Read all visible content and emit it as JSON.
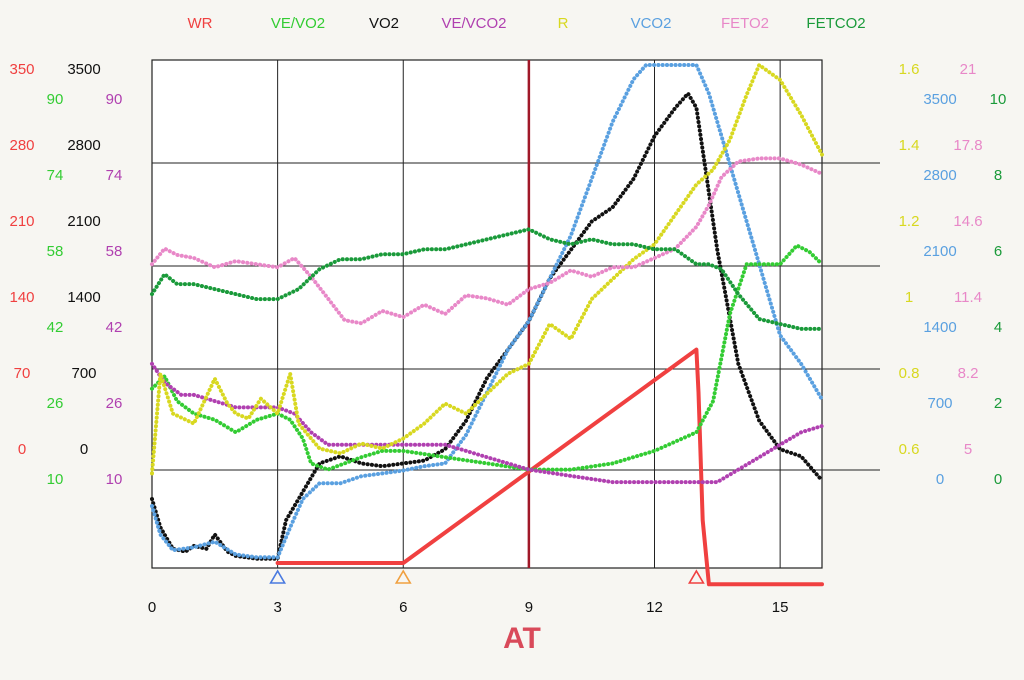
{
  "chart_data": {
    "type": "line",
    "title": "",
    "xlabel": "",
    "annotation": "AT",
    "at_line_x": 9,
    "xlim": [
      0,
      16
    ],
    "x_ticks": [
      "0",
      "3",
      "6",
      "9",
      "12",
      "15"
    ],
    "grid": true,
    "legend_placement": "top",
    "legend": [
      {
        "name": "WR",
        "color": "#f04040"
      },
      {
        "name": "VE/VO2",
        "color": "#33cc33"
      },
      {
        "name": "VO2",
        "color": "#111111"
      },
      {
        "name": "VE/VCO2",
        "color": "#b040b0"
      },
      {
        "name": "R",
        "color": "#d8d820"
      },
      {
        "name": "VCO2",
        "color": "#5aa0e0"
      },
      {
        "name": "FETO2",
        "color": "#e888c8"
      },
      {
        "name": "FETCO2",
        "color": "#1a9a3a"
      }
    ],
    "left_axes": [
      {
        "name": "WR",
        "color": "#f04040",
        "ticks": [
          "350",
          "280",
          "210",
          "140",
          "70",
          "0"
        ],
        "ylim": [
          0,
          350
        ]
      },
      {
        "name": "VO2",
        "color": "#111111",
        "ticks": [
          "3500",
          "2800",
          "2100",
          "1400",
          "700",
          "0"
        ],
        "ylim": [
          0,
          3500
        ]
      },
      {
        "name": "VE/VO2",
        "color": "#33cc33",
        "ticks": [
          "90",
          "74",
          "58",
          "42",
          "26",
          "10"
        ],
        "ylim": [
          10,
          90
        ]
      },
      {
        "name": "VE/VCO2",
        "color": "#b040b0",
        "ticks": [
          "90",
          "74",
          "58",
          "42",
          "26",
          "10"
        ],
        "ylim": [
          10,
          90
        ]
      }
    ],
    "right_axes": [
      {
        "name": "R",
        "color": "#d8d820",
        "ticks": [
          "1.6",
          "1.4",
          "1.2",
          "1",
          "0.8",
          "0.6"
        ],
        "ylim": [
          0.6,
          1.6
        ]
      },
      {
        "name": "FETO2",
        "color": "#e888c8",
        "ticks": [
          "21",
          "17.8",
          "14.6",
          "11.4",
          "8.2",
          "5"
        ],
        "ylim": [
          5,
          21
        ]
      },
      {
        "name": "VCO2",
        "color": "#5aa0e0",
        "ticks": [
          "3500",
          "2800",
          "2100",
          "1400",
          "700",
          "0"
        ],
        "ylim": [
          0,
          3500
        ]
      },
      {
        "name": "FETCO2",
        "color": "#1a9a3a",
        "ticks": [
          "10",
          "8",
          "6",
          "4",
          "2",
          "0"
        ],
        "ylim": [
          0,
          10
        ]
      }
    ],
    "markers": [
      {
        "x": 3,
        "color": "#4a7ae0"
      },
      {
        "x": 6,
        "color": "#f0a040"
      },
      {
        "x": 13,
        "color": "#f04040"
      }
    ],
    "series": [
      {
        "name": "WR",
        "color": "#f04040",
        "axis": "WR",
        "x": [
          3,
          6,
          13,
          13.05,
          13.15,
          13.3,
          16
        ],
        "y": [
          0,
          0,
          150,
          120,
          30,
          -15,
          -15
        ]
      },
      {
        "name": "VO2",
        "color": "#111111",
        "axis": "VO2",
        "x": [
          0,
          0.2,
          0.5,
          0.8,
          1.0,
          1.3,
          1.5,
          1.8,
          2.0,
          2.5,
          3.0,
          3.2,
          3.5,
          4.0,
          4.5,
          5.0,
          5.5,
          6.0,
          6.5,
          7.0,
          7.5,
          8.0,
          8.5,
          9.0,
          9.5,
          10.0,
          10.5,
          11.0,
          11.5,
          12.0,
          12.5,
          12.8,
          13.0,
          13.2,
          13.5,
          14.0,
          14.5,
          15.0,
          15.5,
          16.0
        ],
        "y": [
          450,
          250,
          100,
          80,
          120,
          100,
          200,
          80,
          50,
          30,
          30,
          300,
          450,
          700,
          750,
          700,
          680,
          700,
          720,
          800,
          1000,
          1300,
          1500,
          1700,
          2000,
          2200,
          2400,
          2500,
          2700,
          3000,
          3200,
          3300,
          3200,
          2800,
          2200,
          1400,
          1000,
          800,
          750,
          580
        ]
      },
      {
        "name": "VCO2",
        "color": "#5aa0e0",
        "axis": "VCO2",
        "x": [
          0,
          0.2,
          0.5,
          1.0,
          1.5,
          2.0,
          2.5,
          3.0,
          3.3,
          3.6,
          4.0,
          4.5,
          5.0,
          5.5,
          6.0,
          6.5,
          7.0,
          7.5,
          8.0,
          8.5,
          9.0,
          9.5,
          10.0,
          10.5,
          11.0,
          11.5,
          11.8,
          12.5,
          13.0,
          13.3,
          13.6,
          14.0,
          14.5,
          15.0,
          15.5,
          16.0
        ],
        "y": [
          400,
          200,
          90,
          110,
          150,
          60,
          40,
          40,
          250,
          450,
          560,
          560,
          610,
          630,
          650,
          680,
          700,
          900,
          1200,
          1500,
          1700,
          2000,
          2300,
          2700,
          3100,
          3400,
          3500,
          3500,
          3500,
          3300,
          3000,
          2600,
          2100,
          1600,
          1400,
          1150
        ]
      },
      {
        "name": "VE/VO2",
        "color": "#33cc33",
        "axis": "VE/VO2",
        "x": [
          0,
          0.3,
          0.6,
          1.0,
          1.5,
          2.0,
          2.5,
          3.0,
          3.3,
          3.6,
          3.8,
          4.2,
          4.6,
          5.0,
          5.5,
          6.0,
          7.0,
          8.0,
          9.0,
          10.0,
          11.0,
          12.0,
          13.0,
          13.4,
          13.8,
          14.2,
          15.0,
          15.4,
          15.7,
          16.0
        ],
        "y": [
          38,
          40,
          36,
          34,
          33,
          31,
          33,
          34,
          33,
          30,
          26,
          25,
          26,
          27,
          28,
          28,
          27,
          26,
          25,
          25,
          26,
          28,
          31,
          36,
          50,
          58,
          58,
          61,
          60,
          58
        ]
      },
      {
        "name": "VE/VCO2",
        "color": "#b040b0",
        "axis": "VE/VCO2",
        "x": [
          0,
          0.3,
          0.7,
          1.0,
          1.5,
          2.0,
          3.0,
          3.4,
          3.8,
          4.2,
          5.0,
          6.0,
          7.0,
          7.5,
          8.0,
          9.0,
          10.0,
          11.0,
          12.0,
          12.5,
          13.0,
          13.5,
          14.0,
          14.5,
          15.0,
          15.5,
          16.0
        ],
        "y": [
          42,
          39,
          37,
          37,
          36,
          35,
          35,
          34,
          31,
          29,
          29,
          29,
          29,
          28,
          27,
          25,
          24,
          23,
          23,
          23,
          23,
          23,
          25,
          27,
          29,
          31,
          32
        ]
      },
      {
        "name": "R",
        "color": "#d8d820",
        "axis": "R",
        "x": [
          0,
          0.2,
          0.5,
          1.0,
          1.5,
          1.8,
          2.0,
          2.3,
          2.6,
          3.0,
          3.3,
          3.5,
          4.0,
          4.5,
          5.0,
          5.5,
          6.0,
          6.5,
          7.0,
          7.5,
          8.0,
          8.5,
          9.0,
          9.5,
          10.0,
          10.5,
          11.0,
          11.5,
          12.0,
          12.5,
          13.0,
          13.4,
          13.8,
          14.2,
          14.5,
          15.0,
          15.5,
          16.0
        ],
        "y": [
          0.78,
          0.98,
          0.9,
          0.88,
          0.97,
          0.92,
          0.9,
          0.89,
          0.93,
          0.9,
          0.98,
          0.88,
          0.83,
          0.82,
          0.84,
          0.83,
          0.85,
          0.88,
          0.92,
          0.9,
          0.94,
          0.98,
          1.0,
          1.08,
          1.05,
          1.13,
          1.17,
          1.21,
          1.24,
          1.3,
          1.36,
          1.39,
          1.45,
          1.54,
          1.6,
          1.57,
          1.5,
          1.42
        ]
      },
      {
        "name": "FETO2",
        "color": "#e888c8",
        "axis": "FETO2",
        "x": [
          0,
          0.3,
          0.6,
          1.0,
          1.5,
          2.0,
          2.5,
          3.0,
          3.4,
          3.8,
          4.2,
          4.6,
          5.0,
          5.5,
          6.0,
          6.5,
          7.0,
          7.5,
          8.0,
          8.5,
          9.0,
          9.5,
          10.0,
          10.5,
          11.0,
          11.5,
          12.0,
          12.5,
          13.0,
          13.3,
          13.6,
          14.0,
          14.5,
          15.0,
          15.5,
          16.0
        ],
        "y": [
          14.6,
          15.1,
          14.9,
          14.8,
          14.5,
          14.7,
          14.6,
          14.5,
          14.8,
          14.2,
          13.5,
          12.8,
          12.7,
          13.1,
          12.9,
          13.3,
          13.0,
          13.6,
          13.5,
          13.3,
          13.8,
          14.0,
          14.4,
          14.2,
          14.5,
          14.5,
          14.8,
          15.1,
          15.8,
          16.5,
          17.4,
          17.9,
          18.0,
          18.0,
          17.8,
          17.5
        ]
      },
      {
        "name": "FETCO2",
        "color": "#1a9a3a",
        "axis": "FETCO2",
        "x": [
          0,
          0.3,
          0.6,
          1.0,
          1.5,
          2.0,
          2.5,
          3.0,
          3.5,
          4.0,
          4.5,
          5.0,
          5.5,
          6.0,
          6.5,
          7.0,
          7.5,
          8.0,
          8.5,
          9.0,
          9.5,
          10.0,
          10.5,
          11.0,
          11.5,
          12.0,
          12.5,
          13.0,
          13.3,
          13.6,
          14.0,
          14.5,
          15.0,
          15.5,
          16.0
        ],
        "y": [
          5.4,
          5.8,
          5.6,
          5.6,
          5.5,
          5.4,
          5.3,
          5.3,
          5.5,
          5.9,
          6.1,
          6.1,
          6.2,
          6.2,
          6.3,
          6.3,
          6.4,
          6.5,
          6.6,
          6.7,
          6.5,
          6.4,
          6.5,
          6.4,
          6.4,
          6.3,
          6.3,
          6.0,
          6.0,
          5.9,
          5.4,
          4.9,
          4.8,
          4.7,
          4.7
        ]
      }
    ]
  }
}
